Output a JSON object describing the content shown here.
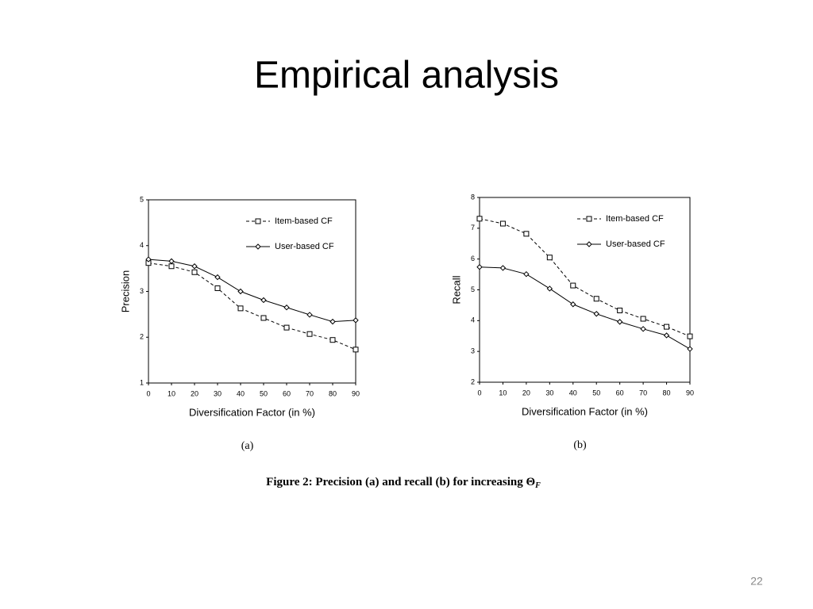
{
  "title": "Empirical analysis",
  "caption": "Figure 2: Precision (a) and recall (b) for increasing Θ",
  "caption_subscript": "F",
  "page_number": "22",
  "chart_data": [
    {
      "type": "line",
      "label": "(a)",
      "x_label": "Diversification Factor (in %)",
      "y_label": "Precision",
      "x": [
        0,
        10,
        20,
        30,
        40,
        50,
        60,
        70,
        80,
        90
      ],
      "xlim": [
        0,
        90
      ],
      "xticks": [
        0,
        10,
        20,
        30,
        40,
        50,
        60,
        70,
        80,
        90
      ],
      "ylim": [
        1,
        5
      ],
      "yticks": [
        1,
        2,
        3,
        4,
        5
      ],
      "series": [
        {
          "name": "Item-based CF",
          "color": "#000000",
          "style": "dashed",
          "marker": "square",
          "values": [
            3.62,
            3.55,
            3.42,
            3.07,
            2.63,
            2.42,
            2.21,
            2.07,
            1.94,
            1.73
          ]
        },
        {
          "name": "User-based CF",
          "color": "#000000",
          "style": "solid",
          "marker": "diamond",
          "values": [
            3.7,
            3.66,
            3.55,
            3.31,
            3.0,
            2.81,
            2.65,
            2.49,
            2.34,
            2.37
          ]
        }
      ]
    },
    {
      "type": "line",
      "label": "(b)",
      "x_label": "Diversification Factor (in %)",
      "y_label": "Recall",
      "x": [
        0,
        10,
        20,
        30,
        40,
        50,
        60,
        70,
        80,
        90
      ],
      "xlim": [
        0,
        90
      ],
      "xticks": [
        0,
        10,
        20,
        30,
        40,
        50,
        60,
        70,
        80,
        90
      ],
      "ylim": [
        2,
        8
      ],
      "yticks": [
        2,
        3,
        4,
        5,
        6,
        7,
        8
      ],
      "series": [
        {
          "name": "Item-based CF",
          "color": "#000000",
          "style": "dashed",
          "marker": "square",
          "values": [
            7.31,
            7.15,
            6.82,
            6.05,
            5.14,
            4.71,
            4.33,
            4.06,
            3.8,
            3.49
          ]
        },
        {
          "name": "User-based CF",
          "color": "#000000",
          "style": "solid",
          "marker": "diamond",
          "values": [
            5.74,
            5.71,
            5.51,
            5.04,
            4.53,
            4.22,
            3.96,
            3.73,
            3.52,
            3.08
          ]
        }
      ]
    }
  ]
}
